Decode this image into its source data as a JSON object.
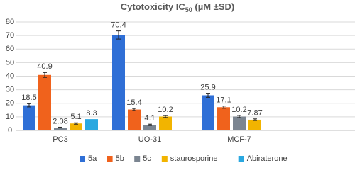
{
  "chart_data": {
    "type": "bar",
    "title_main": "Cytotoxicity IC",
    "title_subscript": "50",
    "title_end": " (µM ±SD)",
    "categories": [
      "PC3",
      "UO-31",
      "MCF-7"
    ],
    "series": [
      {
        "name": "5a",
        "color": "#2f6fd6",
        "values": [
          18.5,
          70.4,
          25.9
        ],
        "errors": [
          1.2,
          3,
          1.5
        ]
      },
      {
        "name": "5b",
        "color": "#f0621c",
        "values": [
          40.9,
          15.4,
          17.1
        ],
        "errors": [
          1.8,
          0.8,
          0.8
        ]
      },
      {
        "name": "5c",
        "color": "#7b8591",
        "values": [
          2.08,
          4.1,
          10.2
        ],
        "errors": [
          0.3,
          0.5,
          0.8
        ]
      },
      {
        "name": "staurosporine",
        "color": "#f2b400",
        "values": [
          5.1,
          10.2,
          7.87
        ],
        "errors": [
          0.5,
          0.7,
          0.6
        ]
      },
      {
        "name": "Abiraterone",
        "color": "#2aa8e0",
        "values": [
          8.3,
          null,
          null
        ],
        "errors": [
          null,
          null,
          null
        ]
      }
    ],
    "ylim": [
      0,
      80
    ],
    "yticks": [
      0,
      10,
      20,
      30,
      40,
      50,
      60,
      70,
      80
    ],
    "grid": true,
    "legend": "bottom"
  }
}
